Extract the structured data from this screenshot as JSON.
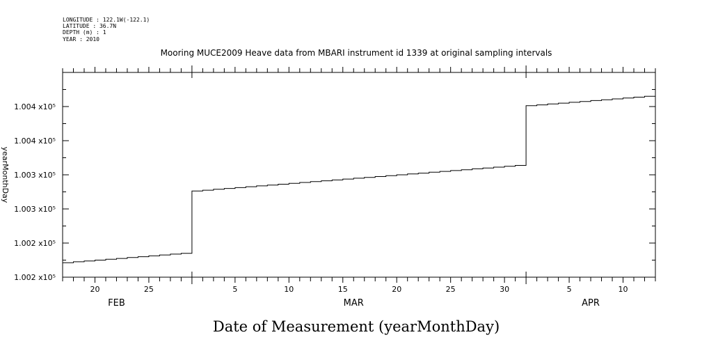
{
  "header": {
    "lines": [
      "LONGITUDE : 122.1W(-122.1)",
      "LATITUDE : 36.7N",
      "DEPTH (m) : 1",
      "YEAR : 2010"
    ]
  },
  "chart_data": {
    "type": "line",
    "title": "Mooring MUCE2009 Heave data from MBARI instrument id 1339 at original sampling intervals",
    "xlabel": "Date of Measurement (yearMonthDay)",
    "ylabel": "yearMonthDay",
    "x_range": [
      "2010-02-17",
      "2010-04-13"
    ],
    "ylim": [
      100200,
      100440
    ],
    "y_tick_values": [
      100200,
      100240,
      100280,
      100320,
      100360,
      100400
    ],
    "y_tick_labels": [
      "1.002 x10⁵",
      "1.002 x10⁵",
      "1.003 x10⁵",
      "1.003 x10⁵",
      "1.004 x10⁵",
      "1.004 x10⁵"
    ],
    "x_day_ticks": [
      {
        "date": "2010-02-20",
        "label": "20"
      },
      {
        "date": "2010-02-25",
        "label": "25"
      },
      {
        "date": "2010-03-05",
        "label": "5"
      },
      {
        "date": "2010-03-10",
        "label": "10"
      },
      {
        "date": "2010-03-15",
        "label": "15"
      },
      {
        "date": "2010-03-20",
        "label": "20"
      },
      {
        "date": "2010-03-25",
        "label": "25"
      },
      {
        "date": "2010-03-30",
        "label": "30"
      },
      {
        "date": "2010-04-05",
        "label": "5"
      },
      {
        "date": "2010-04-10",
        "label": "10"
      }
    ],
    "x_months": [
      {
        "label": "FEB",
        "date": "2010-02-22"
      },
      {
        "label": "MAR",
        "date": "2010-03-16"
      },
      {
        "label": "APR",
        "date": "2010-04-07"
      }
    ],
    "month_boundaries": [
      "2010-03-01",
      "2010-04-01"
    ],
    "series": [
      {
        "x": [
          "2010-02-17",
          "2010-02-18",
          "2010-02-19",
          "2010-02-20",
          "2010-02-21",
          "2010-02-22",
          "2010-02-23",
          "2010-02-24",
          "2010-02-25",
          "2010-02-26",
          "2010-02-27",
          "2010-02-28",
          "2010-03-01",
          "2010-03-02",
          "2010-03-03",
          "2010-03-04",
          "2010-03-05",
          "2010-03-06",
          "2010-03-07",
          "2010-03-08",
          "2010-03-09",
          "2010-03-10",
          "2010-03-11",
          "2010-03-12",
          "2010-03-13",
          "2010-03-14",
          "2010-03-15",
          "2010-03-16",
          "2010-03-17",
          "2010-03-18",
          "2010-03-19",
          "2010-03-20",
          "2010-03-21",
          "2010-03-22",
          "2010-03-23",
          "2010-03-24",
          "2010-03-25",
          "2010-03-26",
          "2010-03-27",
          "2010-03-28",
          "2010-03-29",
          "2010-03-30",
          "2010-03-31",
          "2010-04-01",
          "2010-04-02",
          "2010-04-03",
          "2010-04-04",
          "2010-04-05",
          "2010-04-06",
          "2010-04-07",
          "2010-04-08",
          "2010-04-09",
          "2010-04-10",
          "2010-04-11",
          "2010-04-12",
          "2010-04-13"
        ],
        "y": [
          100217,
          100218,
          100219,
          100220,
          100221,
          100222,
          100223,
          100224,
          100225,
          100226,
          100227,
          100228,
          100301,
          100302,
          100303,
          100304,
          100305,
          100306,
          100307,
          100308,
          100309,
          100310,
          100311,
          100312,
          100313,
          100314,
          100315,
          100316,
          100317,
          100318,
          100319,
          100320,
          100321,
          100322,
          100323,
          100324,
          100325,
          100326,
          100327,
          100328,
          100329,
          100330,
          100331,
          100401,
          100402,
          100403,
          100404,
          100405,
          100406,
          100407,
          100408,
          100409,
          100410,
          100411,
          100412,
          100413
        ]
      }
    ]
  }
}
